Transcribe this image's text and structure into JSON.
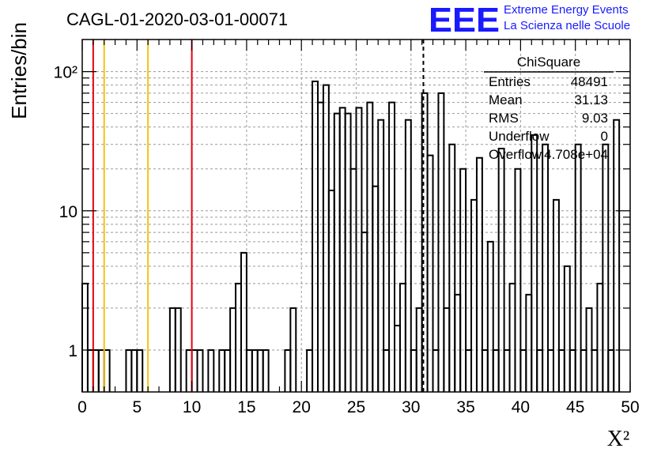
{
  "title": "CAGL-01-2020-03-01-00071",
  "logo": {
    "letters": "EEE",
    "line1": "Extreme Energy Events",
    "line2": "La Scienza nelle Scuole",
    "color": "#1a1aff"
  },
  "stats": {
    "name": "ChiSquare",
    "rows": [
      {
        "label": "Entries",
        "value": "48491"
      },
      {
        "label": "Mean",
        "value": "31.13"
      },
      {
        "label": "RMS",
        "value": "9.03"
      },
      {
        "label": "Underflow",
        "value": "0"
      },
      {
        "label": "Overflow",
        "value": "4.708e+04"
      }
    ]
  },
  "chart_data": {
    "type": "histogram",
    "xlabel": "X²",
    "ylabel": "Entries/bin",
    "xlim": [
      0,
      50
    ],
    "ylim": [
      0.5,
      170
    ],
    "y_scale": "log",
    "grid": true,
    "bin_width": 0.5,
    "bins": [
      [
        0,
        3
      ],
      [
        0.5,
        1
      ],
      [
        1,
        1
      ],
      [
        1.5,
        1
      ],
      [
        2,
        1
      ],
      [
        2.5,
        0
      ],
      [
        3,
        0
      ],
      [
        3.5,
        0
      ],
      [
        4,
        1
      ],
      [
        4.5,
        1
      ],
      [
        5,
        1
      ],
      [
        5.5,
        0
      ],
      [
        6,
        0
      ],
      [
        6.5,
        0
      ],
      [
        7,
        0
      ],
      [
        7.5,
        0
      ],
      [
        8,
        2
      ],
      [
        8.5,
        2
      ],
      [
        9,
        0
      ],
      [
        9.5,
        1
      ],
      [
        10,
        1
      ],
      [
        10.5,
        1
      ],
      [
        11,
        0
      ],
      [
        11.5,
        1
      ],
      [
        12,
        0
      ],
      [
        12.5,
        1
      ],
      [
        13,
        1
      ],
      [
        13.5,
        2
      ],
      [
        14,
        3
      ],
      [
        14.5,
        5
      ],
      [
        15,
        1
      ],
      [
        15.5,
        1
      ],
      [
        16,
        1
      ],
      [
        16.5,
        1
      ],
      [
        17,
        0
      ],
      [
        17.5,
        0
      ],
      [
        18,
        0
      ],
      [
        18.5,
        1
      ],
      [
        19,
        2
      ],
      [
        19.5,
        0
      ],
      [
        20,
        0
      ],
      [
        20.5,
        1
      ],
      [
        21,
        85
      ],
      [
        21.5,
        60
      ],
      [
        22,
        80
      ],
      [
        22.5,
        14
      ],
      [
        23,
        50
      ],
      [
        23.5,
        55
      ],
      [
        24,
        50
      ],
      [
        24.5,
        20
      ],
      [
        25,
        55
      ],
      [
        25.5,
        7
      ],
      [
        26,
        60
      ],
      [
        26.5,
        15
      ],
      [
        27,
        45
      ],
      [
        27.5,
        1
      ],
      [
        28,
        60
      ],
      [
        28.5,
        1.5
      ],
      [
        29,
        3
      ],
      [
        29.5,
        45
      ],
      [
        30,
        1
      ],
      [
        30.5,
        2
      ],
      [
        31,
        70
      ],
      [
        31.5,
        25
      ],
      [
        32,
        1
      ],
      [
        32.5,
        70
      ],
      [
        33,
        2
      ],
      [
        33.5,
        30
      ],
      [
        34,
        2.5
      ],
      [
        34.5,
        20
      ],
      [
        35,
        1
      ],
      [
        35.5,
        12
      ],
      [
        36,
        24
      ],
      [
        36.5,
        1
      ],
      [
        37,
        6
      ],
      [
        37.5,
        1
      ],
      [
        38,
        28
      ],
      [
        38.5,
        1
      ],
      [
        39,
        3
      ],
      [
        39.5,
        20
      ],
      [
        40,
        1
      ],
      [
        40.5,
        2.5
      ],
      [
        41,
        35
      ],
      [
        41.5,
        1
      ],
      [
        42,
        30
      ],
      [
        42.5,
        1
      ],
      [
        43,
        12
      ],
      [
        43.5,
        1
      ],
      [
        44,
        4
      ],
      [
        44.5,
        1
      ],
      [
        45,
        30
      ],
      [
        45.5,
        1
      ],
      [
        46,
        2
      ],
      [
        46.5,
        1
      ],
      [
        47,
        3
      ],
      [
        47.5,
        30
      ],
      [
        48,
        1
      ],
      [
        48.5,
        45
      ]
    ],
    "vlines": [
      {
        "x": 1,
        "color": "#e8000f",
        "style": "solid"
      },
      {
        "x": 10,
        "color": "#e8000f",
        "style": "solid"
      },
      {
        "x": 2,
        "color": "#f4c20d",
        "style": "solid"
      },
      {
        "x": 6,
        "color": "#f4c20d",
        "style": "solid"
      },
      {
        "x": 31.13,
        "color": "#000000",
        "style": "dashed"
      }
    ],
    "xticks": [
      0,
      5,
      10,
      15,
      20,
      25,
      30,
      35,
      40,
      45,
      50
    ],
    "yticks": [
      {
        "value": 1,
        "label": "1"
      },
      {
        "value": 10,
        "label": "10"
      },
      {
        "value": 100,
        "label": "10²"
      }
    ]
  }
}
